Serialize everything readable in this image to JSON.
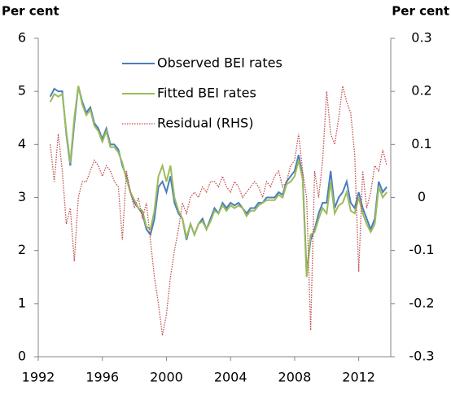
{
  "chart_data": {
    "type": "line",
    "y_label": "Per cent",
    "y2_label": "Per cent",
    "x": [
      1992.75,
      1993,
      1993.25,
      1993.5,
      1993.75,
      1994,
      1994.25,
      1994.5,
      1994.75,
      1995,
      1995.25,
      1995.5,
      1995.75,
      1996,
      1996.25,
      1996.5,
      1996.75,
      1997,
      1997.25,
      1997.5,
      1997.75,
      1998,
      1998.25,
      1998.5,
      1998.75,
      1999,
      1999.25,
      1999.5,
      1999.75,
      2000,
      2000.25,
      2000.5,
      2000.75,
      2001,
      2001.25,
      2001.5,
      2001.75,
      2002,
      2002.25,
      2002.5,
      2002.75,
      2003,
      2003.25,
      2003.5,
      2003.75,
      2004,
      2004.25,
      2004.5,
      2004.75,
      2005,
      2005.25,
      2005.5,
      2005.75,
      2006,
      2006.25,
      2006.5,
      2006.75,
      2007,
      2007.25,
      2007.5,
      2007.75,
      2008,
      2008.25,
      2008.5,
      2008.75,
      2009,
      2009.25,
      2009.5,
      2009.75,
      2010,
      2010.25,
      2010.5,
      2010.75,
      2011,
      2011.25,
      2011.5,
      2011.75,
      2012,
      2012.25,
      2012.5,
      2012.75,
      2013,
      2013.25,
      2013.5,
      2013.75
    ],
    "series": [
      {
        "name": "Observed BEI rates",
        "color": "#4a7ebb",
        "values": [
          4.9,
          5.05,
          5.0,
          5.0,
          4.2,
          3.6,
          4.4,
          5.1,
          4.8,
          4.6,
          4.7,
          4.4,
          4.3,
          4.1,
          4.3,
          4.0,
          4.0,
          3.9,
          3.6,
          3.4,
          3.1,
          2.9,
          2.8,
          2.7,
          2.4,
          2.3,
          2.6,
          3.2,
          3.3,
          3.1,
          3.4,
          2.9,
          2.7,
          2.6,
          2.2,
          2.5,
          2.3,
          2.5,
          2.6,
          2.4,
          2.6,
          2.8,
          2.7,
          2.9,
          2.8,
          2.9,
          2.85,
          2.9,
          2.8,
          2.7,
          2.8,
          2.8,
          2.9,
          2.9,
          3.0,
          3.0,
          3.0,
          3.1,
          3.05,
          3.3,
          3.4,
          3.5,
          3.8,
          3.4,
          1.6,
          2.2,
          2.4,
          2.7,
          2.9,
          2.9,
          3.5,
          2.8,
          3.0,
          3.1,
          3.3,
          2.9,
          2.8,
          3.1,
          2.8,
          2.6,
          2.4,
          2.6,
          3.3,
          3.1,
          3.2
        ]
      },
      {
        "name": "Fitted BEI rates",
        "color": "#9bbb59",
        "values": [
          4.8,
          4.95,
          4.9,
          4.95,
          4.25,
          3.65,
          4.5,
          5.1,
          4.75,
          4.55,
          4.65,
          4.35,
          4.25,
          4.05,
          4.25,
          3.95,
          3.95,
          3.85,
          3.65,
          3.35,
          3.1,
          2.95,
          2.8,
          2.75,
          2.45,
          2.4,
          2.75,
          3.4,
          3.6,
          3.3,
          3.6,
          3.0,
          2.75,
          2.6,
          2.25,
          2.5,
          2.3,
          2.5,
          2.55,
          2.4,
          2.55,
          2.75,
          2.7,
          2.85,
          2.75,
          2.85,
          2.8,
          2.85,
          2.8,
          2.65,
          2.75,
          2.75,
          2.85,
          2.9,
          2.95,
          2.95,
          2.95,
          3.05,
          3.0,
          3.25,
          3.3,
          3.4,
          3.7,
          3.35,
          1.5,
          2.3,
          2.35,
          2.6,
          2.8,
          2.7,
          3.3,
          2.7,
          2.85,
          2.9,
          3.1,
          2.75,
          2.7,
          3.0,
          2.7,
          2.5,
          2.35,
          2.5,
          3.2,
          3.0,
          3.1
        ]
      },
      {
        "name": "Residual (RHS)",
        "color": "#c0504d",
        "axis": "y2",
        "values": [
          0.1,
          0.03,
          0.12,
          0.05,
          -0.05,
          -0.02,
          -0.12,
          0.0,
          0.03,
          0.03,
          0.05,
          0.07,
          0.06,
          0.04,
          0.06,
          0.05,
          0.03,
          0.02,
          -0.08,
          0.05,
          0.01,
          -0.02,
          0.0,
          -0.04,
          -0.01,
          -0.08,
          -0.15,
          -0.2,
          -0.26,
          -0.22,
          -0.15,
          -0.1,
          -0.06,
          -0.01,
          -0.03,
          0.0,
          0.01,
          0.0,
          0.02,
          0.01,
          0.03,
          0.03,
          0.02,
          0.04,
          0.02,
          0.01,
          0.03,
          0.02,
          0.0,
          0.01,
          0.02,
          0.03,
          0.02,
          0.0,
          0.03,
          0.02,
          0.04,
          0.05,
          0.02,
          0.03,
          0.06,
          0.07,
          0.12,
          0.05,
          0.0,
          -0.25,
          0.05,
          0.0,
          0.07,
          0.2,
          0.12,
          0.1,
          0.15,
          0.21,
          0.18,
          0.16,
          0.08,
          -0.14,
          0.05,
          -0.02,
          0.01,
          0.06,
          0.05,
          0.09,
          0.06
        ]
      }
    ],
    "xlim": [
      1992,
      2014
    ],
    "xticks": [
      1992,
      1996,
      2000,
      2004,
      2008,
      2012
    ],
    "ylim": [
      0,
      6
    ],
    "yticks": [
      0,
      1,
      2,
      3,
      4,
      5,
      6
    ],
    "y2lim": [
      -0.3,
      0.3
    ],
    "y2ticks": [
      -0.3,
      -0.2,
      -0.1,
      0,
      0.1,
      0.2,
      0.3
    ],
    "grid": false
  }
}
